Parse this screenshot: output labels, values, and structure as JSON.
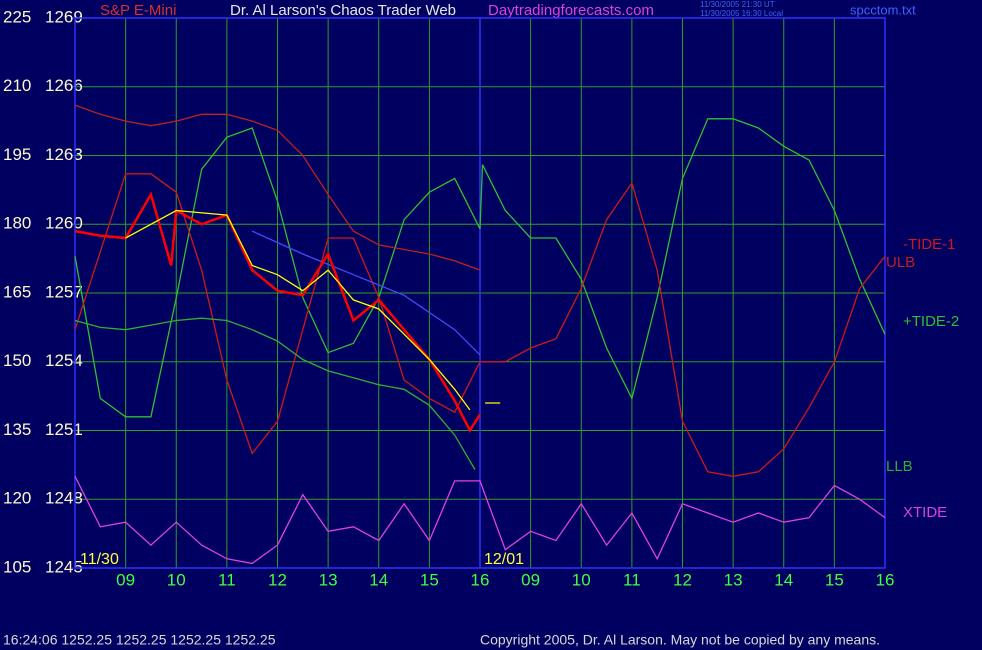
{
  "chart_data": {
    "type": "line",
    "symbol": "S&P E-Mini",
    "title": "Dr. Al Larson's Chaos Trader Web",
    "website": "Daytradingforecasts.com",
    "timestamps": [
      "11/30/2005 21:30 UT",
      "11/30/2005 16:30 Local"
    ],
    "file": "spcctom.txt",
    "date_labels": [
      "11/30",
      "12/01"
    ],
    "status": "16:24:06  1252.25 1252.25 1252.25 1252.25",
    "copyright": "Copyright 2005, Dr. Al Larson. May not be copied by any means.",
    "grid": true,
    "xlim": [
      8,
      24
    ],
    "xticks": [
      {
        "value": 9,
        "label": "09"
      },
      10,
      11,
      12,
      13,
      14,
      15,
      16,
      {
        "value": 17,
        "label": "09"
      },
      {
        "value": 18,
        "label": "10"
      },
      {
        "value": 19,
        "label": "11"
      },
      {
        "value": 20,
        "label": "12"
      },
      {
        "value": 21,
        "label": "13"
      },
      {
        "value": 22,
        "label": "14"
      },
      {
        "value": 23,
        "label": "15"
      },
      {
        "value": 24,
        "label": "16"
      }
    ],
    "ylim": [
      105,
      225
    ],
    "yticks": [
      105,
      120,
      135,
      150,
      165,
      180,
      195,
      210,
      225
    ],
    "y2lim": [
      1245,
      1269
    ],
    "y2ticks": [
      1245,
      1248,
      1251,
      1254,
      1257,
      1260,
      1263,
      1266,
      1269
    ],
    "series": [
      {
        "name": "XTIDE",
        "color": "#e040e0",
        "x": [
          8,
          8.5,
          9,
          9.5,
          10,
          10.5,
          11,
          11.5,
          12,
          12.5,
          13,
          13.5,
          14,
          14.5,
          15,
          15.5,
          16,
          16.5,
          17,
          17.5,
          18,
          18.5,
          19,
          19.5,
          20,
          20.5,
          21,
          21.5,
          22,
          22.5,
          23,
          23.5,
          24
        ],
        "values": [
          125,
          114,
          115,
          110,
          115,
          110,
          107,
          106,
          110,
          121,
          113,
          114,
          111,
          119,
          111,
          124,
          124,
          109,
          113,
          111,
          119,
          110,
          117,
          107,
          119,
          117,
          115,
          117,
          115,
          116,
          123,
          120,
          116
        ]
      },
      {
        "name": "+TIDE-2",
        "color": "#30c030",
        "x": [
          8,
          8.5,
          9,
          9.5,
          10,
          10.5,
          11,
          11.5,
          12,
          12.5,
          13,
          13.5,
          14,
          14.5,
          15,
          15.5,
          16,
          16.05,
          16.5,
          17,
          17.5,
          18,
          18.5,
          19,
          19.5,
          20,
          20.5,
          21,
          21.5,
          22,
          22.5,
          23,
          23.5,
          24
        ],
        "values": [
          173,
          142,
          138,
          138,
          164,
          192,
          199,
          201,
          185,
          164,
          152,
          154,
          164,
          181,
          187,
          190,
          179,
          193,
          183,
          177,
          177,
          168,
          153,
          142,
          164,
          190,
          203,
          203,
          201,
          197,
          194,
          183,
          168,
          156
        ]
      },
      {
        "name": "-TIDE-1",
        "color": "#d01818",
        "x": [
          8,
          8.5,
          9,
          9.5,
          10,
          10.5,
          11,
          11.5,
          12,
          12.5,
          13,
          13.5,
          14,
          14.5,
          15,
          15.5,
          16,
          16.5,
          17,
          17.5,
          18,
          18.5,
          19,
          19.5,
          20,
          20.5,
          21,
          21.5,
          22,
          22.5,
          23,
          23.5,
          24
        ],
        "values": [
          157,
          174,
          191,
          191,
          187,
          170,
          146,
          130,
          137,
          157,
          177,
          177,
          164,
          146,
          142,
          139,
          150,
          150,
          153,
          155,
          166,
          181,
          189,
          170,
          137,
          126,
          125,
          126,
          131,
          140,
          150,
          166,
          173
        ]
      },
      {
        "name": "ULB",
        "color": "#c02020",
        "axis": "y2",
        "x": [
          8,
          8.5,
          9,
          9.5,
          10,
          10.5,
          11,
          11.5,
          12,
          12.5,
          13,
          13.5,
          14,
          14.5,
          15,
          15.5,
          16
        ],
        "values": [
          1265.2,
          1264.8,
          1264.5,
          1264.3,
          1264.5,
          1264.8,
          1264.8,
          1264.5,
          1264.1,
          1263.0,
          1261.3,
          1259.7,
          1259.1,
          1258.9,
          1258.7,
          1258.4,
          1258.0
        ]
      },
      {
        "name": "LLB",
        "color": "#30b030",
        "axis": "y2",
        "x": [
          8,
          8.5,
          9,
          9.5,
          10,
          10.5,
          11,
          11.5,
          12,
          12.5,
          13,
          13.5,
          14,
          14.5,
          15,
          15.5,
          15.9
        ],
        "values": [
          1255.8,
          1255.5,
          1255.4,
          1255.6,
          1255.8,
          1255.9,
          1255.8,
          1255.4,
          1254.9,
          1254.1,
          1253.6,
          1253.3,
          1253.0,
          1252.8,
          1252.1,
          1250.8,
          1249.3
        ]
      },
      {
        "color": "#4848ff",
        "axis": "y2",
        "x": [
          11.5,
          12.5,
          13.5,
          14.5,
          15.5,
          16
        ],
        "values": [
          1259.7,
          1258.7,
          1257.8,
          1256.9,
          1255.4,
          1254.3
        ]
      },
      {
        "color": "#ff0000",
        "axis": "y2",
        "x": [
          8,
          8.5,
          9,
          9.5,
          9.9,
          10,
          10.5,
          11,
          11.5,
          12,
          12.5,
          13,
          13.5,
          14,
          14.5,
          15,
          15.5,
          15.8,
          16
        ],
        "values": [
          1259.7,
          1259.5,
          1259.4,
          1261.3,
          1258.2,
          1260.6,
          1260.0,
          1260.4,
          1258.0,
          1257.1,
          1256.9,
          1258.7,
          1255.8,
          1256.7,
          1255.4,
          1254.1,
          1252.3,
          1251.0,
          1251.7
        ]
      },
      {
        "color": "#ffff00",
        "axis": "y2",
        "x": [
          9,
          10,
          11,
          11.5,
          12,
          12.5,
          13,
          13.5,
          14,
          14.5,
          15,
          15.5,
          15.8,
          15.9,
          16.1,
          16.4
        ],
        "values": [
          1259.4,
          1260.6,
          1260.4,
          1258.2,
          1257.8,
          1257.1,
          1258.0,
          1256.7,
          1256.3,
          1255.2,
          1254.1,
          1252.8,
          1251.9,
          null,
          1252.2,
          1252.2
        ]
      }
    ]
  }
}
